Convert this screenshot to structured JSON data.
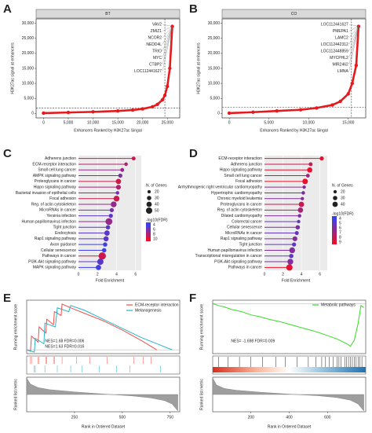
{
  "chart_data": [
    {
      "type": "rank",
      "label": "A",
      "title": "BT",
      "ylabel": "H3K27ac signal at enhancers",
      "xlabel": "Enhancers Ranked by H3K27ac Singal",
      "x": [
        0,
        5000,
        10000,
        15000,
        18000,
        20000,
        22000,
        23000,
        24000,
        24500,
        25000,
        25500,
        26000
      ],
      "values": [
        100,
        300,
        500,
        800,
        1100,
        1500,
        2200,
        3000,
        4500,
        6000,
        9000,
        15000,
        29000
      ],
      "color": "#e41a1c",
      "cutoff_x": 24500,
      "cutoff_y": 1800,
      "xlim": [
        -1500,
        27500
      ],
      "ylim": [
        -1500,
        31500
      ],
      "xticks": [
        0,
        {
          "value": 5000,
          "label": "5,000"
        },
        {
          "value": 10000,
          "label": "10,000"
        },
        {
          "value": 15000,
          "label": "15,000"
        },
        {
          "value": 20000,
          "label": "20,000"
        },
        {
          "value": 25000,
          "label": "25,000"
        }
      ],
      "yticks": [
        0,
        {
          "value": 5000,
          "label": "5,000"
        },
        {
          "value": 10000,
          "label": "10,000"
        },
        {
          "value": 15000,
          "label": "15,000"
        },
        {
          "value": 20000,
          "label": "20,000"
        },
        {
          "value": 25000,
          "label": "25,000"
        },
        {
          "value": 30000,
          "label": "30,000"
        }
      ],
      "annotations": [
        "VAV2",
        "ZMIZ1",
        "NCOR2",
        "NEDD4L",
        "TRIO",
        "MYC",
        "CTBP2",
        "LOC112441627"
      ]
    },
    {
      "type": "rank",
      "label": "B",
      "title": "CO",
      "ylabel": "H3K27ac signal at enhancers",
      "xlabel": "Enhancers Ranked by H3K27ac Singal",
      "x": [
        0,
        3000,
        6000,
        9000,
        11000,
        13000,
        14000,
        15000,
        15500,
        16000,
        16300
      ],
      "values": [
        100,
        400,
        800,
        1200,
        1800,
        2800,
        4000,
        6500,
        10000,
        16000,
        29000
      ],
      "color": "#e41a1c",
      "cutoff_x": 15400,
      "cutoff_y": 2000,
      "xlim": [
        -900,
        17200
      ],
      "ylim": [
        -1500,
        31500
      ],
      "xticks": [
        0,
        {
          "value": 5000,
          "label": "5,000"
        },
        {
          "value": 10000,
          "label": "10,000"
        },
        {
          "value": 15000,
          "label": "15,000"
        }
      ],
      "yticks": [
        0,
        {
          "value": 5000,
          "label": "5,000"
        },
        {
          "value": 10000,
          "label": "10,000"
        },
        {
          "value": 15000,
          "label": "15,000"
        },
        {
          "value": 20000,
          "label": "20,000"
        },
        {
          "value": 25000,
          "label": "25,000"
        },
        {
          "value": 30000,
          "label": "30,000"
        }
      ],
      "annotations": [
        "LOC112441627",
        "PMEPA1",
        "LAMC2",
        "LOC112442312",
        "LOC112448859",
        "MYCPHL2",
        "MIR2462",
        "LMNA"
      ]
    },
    {
      "type": "lollipop",
      "label": "C",
      "xlabel": "Fold Enrichment",
      "xlim": [
        0,
        6.6
      ],
      "xticks": [
        0,
        2,
        4,
        6
      ],
      "categories": [
        "Adherens junction",
        "ECM-receptor interaction",
        "Small cell lung cancer",
        "AMPK signaling pathway",
        "Proteoglycans in cancer",
        "Hippo signaling pathway",
        "Bacterial invasion of epithelial cells",
        "Focal adhesion",
        "Reg. of actin cytoskeleton",
        "MicroRNAs in cancer",
        "Yersinia infection",
        "Human papillomavirus infection",
        "Tight junction",
        "Endocytosis",
        "Rap1 signaling pathway",
        "Axon guidance",
        "Cellular senescence",
        "Pathways in cancer",
        "PI3K-Akt signaling pathway",
        "MAPK signaling pathway"
      ],
      "values": [
        5.8,
        5.0,
        4.6,
        4.4,
        4.2,
        4.2,
        4.1,
        4.0,
        3.7,
        3.5,
        3.4,
        3.2,
        3.1,
        3.0,
        2.9,
        2.8,
        2.7,
        2.5,
        2.3,
        2.1
      ],
      "genes": [
        25,
        22,
        25,
        28,
        40,
        35,
        22,
        45,
        45,
        28,
        28,
        55,
        30,
        40,
        38,
        30,
        30,
        60,
        50,
        40
      ],
      "fdr": [
        9,
        8,
        7,
        6,
        9,
        8,
        6,
        9,
        7,
        6,
        5,
        7,
        5,
        5,
        5,
        4,
        4,
        9,
        5,
        4
      ],
      "size_title": "N. of Genes",
      "size_legend": [
        20,
        30,
        40,
        50
      ],
      "color_title": "-log10(FDR)",
      "color_legend": [
        4,
        6,
        8,
        10
      ],
      "colors": [
        "#3f3fe8",
        "#e8102e"
      ]
    },
    {
      "type": "lollipop",
      "label": "D",
      "xlabel": "Fold Enrichment",
      "xlim": [
        0,
        6.8
      ],
      "xticks": [
        0,
        2,
        4,
        6
      ],
      "categories": [
        "ECM-receptor interaction",
        "Adherens junction",
        "Hippo signaling pathway",
        "Small cell lung cancer",
        "Focal adhesion",
        "Arrhythmogenic right ventricular cardiomyopathy",
        "Hypertrophic cardiomyopathy",
        "Chronic myeloid leukemia",
        "Proteoglycans in cancer",
        "Reg. of actin cytoskeleton",
        "Dilated cardiomyopathy",
        "Colorectal cancer",
        "Cellular senescence",
        "MicroRNAs in cancer",
        "Rap1 signaling pathway",
        "Tight junction",
        "Human papillomavirus infection",
        "Transcriptional misregulation in cancer",
        "PI3K-Akt signaling pathway",
        "Pathways in cancer"
      ],
      "values": [
        6.2,
        5.0,
        4.9,
        4.7,
        4.4,
        4.3,
        4.2,
        4.1,
        4.0,
        3.9,
        3.8,
        3.7,
        3.6,
        3.5,
        3.3,
        3.2,
        3.0,
        2.9,
        2.8,
        2.7
      ],
      "genes": [
        28,
        25,
        38,
        24,
        42,
        20,
        22,
        20,
        40,
        40,
        22,
        20,
        30,
        26,
        35,
        28,
        45,
        30,
        45,
        50
      ],
      "fdr": [
        9,
        8,
        9,
        7,
        9,
        6,
        6,
        6,
        8,
        7,
        6,
        5,
        6,
        5,
        6,
        5,
        6,
        5,
        6,
        9
      ],
      "size_title": "N. of Genes",
      "size_legend": [
        20,
        30,
        40
      ],
      "color_title": "-log10(FDR)",
      "color_legend": [
        4,
        5,
        6,
        7,
        8,
        9
      ],
      "colors": [
        "#3f3fe8",
        "#e8102e"
      ]
    },
    {
      "type": "gsea",
      "label": "E",
      "ylabel": "Running enrichment score",
      "metric_label": "Ranked list metric",
      "xlabel": "Rank in Ordered Dataset",
      "xlim": [
        0,
        800
      ],
      "xticks": [
        250,
        500,
        750
      ],
      "ylim": [
        -0.05,
        0.65
      ],
      "metric_ylim": [
        -1,
        1
      ],
      "legend": "top-right",
      "series": [
        {
          "name": "ECM-receptor interaction",
          "color": "#f0504a",
          "stat": "NES=1.68 FDR=0.006",
          "x": [
            0,
            20,
            25,
            60,
            65,
            100,
            105,
            140,
            145,
            180,
            185,
            230,
            300,
            400,
            500,
            600,
            680
          ],
          "values": [
            0,
            -0.02,
            0.18,
            0.1,
            0.3,
            0.22,
            0.4,
            0.33,
            0.5,
            0.45,
            0.6,
            0.55,
            0.48,
            0.38,
            0.26,
            0.12,
            0.0
          ],
          "hits": [
            20,
            25,
            60,
            65,
            100,
            105,
            140,
            145,
            185,
            260,
            330,
            420,
            560,
            610,
            650
          ]
        },
        {
          "name": "Melanogenesis",
          "color": "#27b5c9",
          "stat": "NES=1.63 FDR=0.016",
          "x": [
            0,
            40,
            45,
            90,
            95,
            150,
            160,
            220,
            230,
            300,
            400,
            500,
            600,
            700,
            760
          ],
          "values": [
            0,
            -0.03,
            0.15,
            0.08,
            0.35,
            0.3,
            0.55,
            0.5,
            0.58,
            0.52,
            0.4,
            0.28,
            0.16,
            0.06,
            0.0
          ],
          "hits": [
            40,
            45,
            95,
            160,
            230,
            290,
            380,
            470,
            540,
            700
          ]
        }
      ],
      "metric_x": [
        0,
        20,
        60,
        120,
        250,
        400,
        550,
        650,
        720,
        760,
        790
      ],
      "metric": [
        0.95,
        0.6,
        0.4,
        0.28,
        0.15,
        0.03,
        -0.08,
        -0.2,
        -0.35,
        -0.55,
        -0.95
      ]
    },
    {
      "type": "gsea",
      "label": "F",
      "ylabel": "Running enrichment score",
      "metric_label": "Ranked list metric",
      "xlabel": "Rank in Ordered Dataset",
      "xlim": [
        0,
        800
      ],
      "xticks": [
        200,
        400,
        600
      ],
      "ylim": [
        -0.75,
        0.05
      ],
      "metric_ylim": [
        -1,
        1
      ],
      "legend": "top-right",
      "series": [
        {
          "name": "Metabolic pathways",
          "color": "#33dd22",
          "stat": "NES= -1.698  FDR=0.009",
          "x": [
            0,
            30,
            60,
            100,
            150,
            200,
            250,
            300,
            350,
            400,
            450,
            500,
            550,
            600,
            650,
            700,
            720,
            740,
            760,
            775,
            790
          ],
          "values": [
            0,
            -0.03,
            -0.05,
            -0.09,
            -0.12,
            -0.17,
            -0.2,
            -0.24,
            -0.27,
            -0.31,
            -0.35,
            -0.39,
            -0.43,
            -0.48,
            -0.53,
            -0.6,
            -0.64,
            -0.55,
            -0.3,
            -0.03,
            -0.06
          ],
          "hits": [
            30,
            80,
            140,
            200,
            260,
            330,
            380,
            440,
            500,
            540,
            570,
            590,
            610,
            630,
            650,
            660,
            670,
            690,
            700,
            710,
            720,
            730,
            740,
            750,
            760,
            770,
            780
          ]
        }
      ],
      "metric_x": [
        0,
        20,
        60,
        120,
        250,
        400,
        550,
        650,
        720,
        760,
        790
      ],
      "metric": [
        0.95,
        0.55,
        0.35,
        0.25,
        0.13,
        0.02,
        -0.07,
        -0.18,
        -0.33,
        -0.55,
        -0.95
      ]
    }
  ]
}
